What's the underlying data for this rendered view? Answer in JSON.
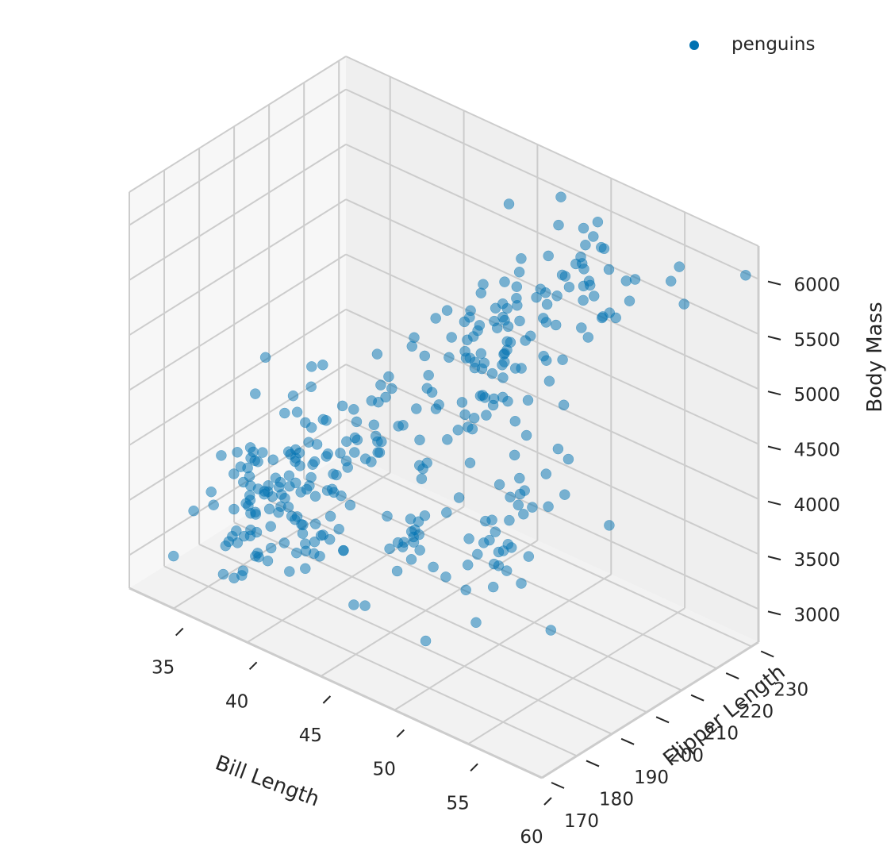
{
  "chart_data": {
    "type": "scatter",
    "projection": "3d",
    "title": "",
    "xlabel": "Bill Length",
    "ylabel": "Flipper Length",
    "zlabel": "Body Mass",
    "xlim": [
      32,
      60
    ],
    "ylim": [
      170,
      232
    ],
    "zlim": [
      2700,
      6300
    ],
    "xticks": [
      35,
      40,
      45,
      50,
      55,
      60
    ],
    "yticks": [
      170,
      180,
      190,
      200,
      210,
      220,
      230
    ],
    "zticks": [
      3000,
      3500,
      4000,
      4500,
      5000,
      5500,
      6000
    ],
    "grid": true,
    "legend": {
      "position": "top-right",
      "entries": [
        "penguins"
      ]
    },
    "colors": {
      "marker": "#0072B2",
      "pane_floor": "#F2F2F2",
      "pane_left": "#F7F7F7",
      "pane_back": "#EFEFEF",
      "grid": "#CCCCCC",
      "text": "#262626"
    },
    "series": [
      {
        "name": "penguins",
        "x": [
          39.1,
          39.5,
          40.3,
          36.7,
          39.3,
          38.9,
          39.2,
          34.1,
          42.0,
          37.8,
          37.8,
          41.1,
          38.6,
          34.6,
          36.6,
          38.7,
          42.5,
          34.4,
          46.0,
          37.8,
          37.7,
          35.9,
          38.2,
          38.8,
          35.3,
          40.6,
          40.5,
          37.9,
          40.5,
          39.5,
          37.2,
          39.5,
          40.9,
          36.4,
          39.2,
          38.8,
          42.2,
          37.6,
          39.8,
          36.5,
          40.8,
          36.0,
          44.1,
          37.0,
          39.6,
          41.1,
          37.5,
          36.0,
          42.3,
          39.6,
          40.1,
          35.0,
          42.0,
          34.5,
          41.4,
          39.0,
          40.6,
          36.5,
          37.6,
          35.7,
          41.3,
          37.6,
          41.1,
          36.4,
          41.6,
          35.5,
          41.1,
          35.9,
          41.8,
          33.5,
          39.7,
          39.6,
          45.8,
          35.5,
          42.8,
          40.9,
          37.2,
          36.2,
          42.1,
          34.6,
          42.9,
          36.7,
          35.1,
          37.3,
          41.3,
          36.3,
          36.9,
          38.3,
          38.9,
          35.7,
          41.1,
          34.0,
          39.6,
          36.2,
          40.8,
          38.1,
          40.3,
          33.1,
          43.2,
          35.0,
          41.0,
          37.7,
          37.8,
          37.9,
          39.7,
          38.6,
          38.2,
          38.1,
          43.2,
          38.1,
          45.6,
          39.7,
          42.2,
          39.6,
          42.7,
          38.6,
          37.3,
          35.7,
          41.1,
          36.2,
          37.7,
          40.2,
          41.4,
          35.2,
          40.6,
          38.8,
          41.5,
          39.0,
          44.1,
          38.5,
          43.1,
          36.8,
          37.5,
          38.1,
          41.1,
          35.6,
          40.2,
          37.0,
          39.7,
          40.2,
          40.6,
          32.1,
          40.7,
          37.3,
          39.0,
          39.2,
          36.6,
          36.0,
          37.8,
          36.0,
          41.5,
          46.1,
          50.0,
          48.7,
          50.0,
          47.6,
          46.5,
          45.4,
          46.7,
          43.3,
          46.8,
          40.9,
          49.0,
          45.5,
          48.4,
          45.8,
          49.3,
          42.0,
          49.2,
          46.2,
          48.7,
          50.2,
          45.1,
          46.5,
          46.3,
          42.9,
          46.1,
          44.5,
          47.8,
          48.2,
          50.0,
          47.3,
          42.8,
          45.1,
          59.6,
          49.1,
          48.4,
          42.6,
          44.4,
          44.0,
          48.7,
          42.7,
          49.6,
          45.3,
          49.6,
          50.5,
          43.6,
          45.5,
          50.5,
          44.9,
          45.2,
          46.6,
          48.5,
          45.1,
          50.1,
          46.5,
          45.0,
          43.8,
          45.5,
          43.2,
          50.4,
          45.3,
          46.2,
          45.7,
          54.3,
          45.8,
          49.8,
          46.2,
          49.5,
          43.5,
          50.7,
          47.7,
          46.4,
          48.2,
          46.5,
          46.4,
          48.6,
          47.5,
          51.1,
          45.2,
          45.2,
          49.1,
          52.5,
          47.4,
          50.0,
          44.9,
          50.8,
          43.4,
          51.3,
          47.5,
          52.1,
          47.5,
          52.2,
          45.5,
          49.5,
          44.5,
          50.8,
          49.4,
          46.9,
          48.4,
          51.1,
          48.5,
          55.9,
          47.2,
          49.1,
          47.3,
          46.8,
          41.7,
          53.4,
          43.3,
          48.1,
          50.5,
          49.8,
          43.5,
          51.5,
          46.2,
          55.1,
          44.5,
          48.8,
          47.2,
          46.8,
          50.4,
          45.2,
          49.9,
          46.5,
          50.0,
          51.3,
          45.4,
          52.7,
          45.2,
          46.1,
          51.3,
          46.0,
          51.3,
          46.6,
          51.7,
          47.0,
          52.0,
          45.9,
          50.5,
          50.3,
          58.0,
          46.4,
          49.2,
          42.4,
          48.5,
          43.2,
          50.6,
          46.7,
          52.0,
          50.5,
          49.5,
          46.4,
          52.8,
          40.9,
          54.2,
          42.5,
          51.0,
          49.7,
          47.5,
          47.6,
          52.0,
          46.9,
          53.5,
          49.0,
          46.2,
          50.9,
          45.5,
          50.9,
          50.8,
          50.1,
          49.0,
          51.5,
          49.8,
          48.1,
          51.4,
          45.7,
          50.7,
          42.5,
          52.2,
          45.2,
          49.3,
          50.2,
          45.6,
          51.9,
          46.8,
          45.7,
          55.8,
          43.5,
          49.6,
          50.8,
          50.2
        ],
        "y": [
          181,
          186,
          195,
          193,
          190,
          181,
          195,
          193,
          190,
          186,
          180,
          182,
          191,
          198,
          185,
          195,
          197,
          184,
          194,
          174,
          180,
          189,
          185,
          180,
          187,
          183,
          187,
          172,
          180,
          178,
          178,
          188,
          184,
          195,
          196,
          190,
          180,
          181,
          184,
          182,
          195,
          186,
          196,
          185,
          190,
          182,
          179,
          190,
          191,
          186,
          188,
          190,
          200,
          187,
          191,
          186,
          193,
          181,
          194,
          185,
          195,
          185,
          192,
          184,
          192,
          195,
          188,
          190,
          198,
          190,
          190,
          196,
          197,
          190,
          195,
          191,
          184,
          187,
          195,
          189,
          196,
          187,
          193,
          191,
          194,
          190,
          189,
          189,
          190,
          202,
          205,
          185,
          186,
          187,
          208,
          190,
          196,
          178,
          192,
          192,
          203,
          183,
          190,
          193,
          184,
          199,
          190,
          181,
          197,
          198,
          191,
          193,
          197,
          191,
          196,
          188,
          199,
          189,
          189,
          187,
          198,
          176,
          202,
          186,
          199,
          191,
          195,
          191,
          210,
          190,
          197,
          193,
          199,
          187,
          190,
          191,
          200,
          185,
          193,
          193,
          187,
          188,
          190,
          192,
          185,
          190,
          184,
          195,
          193,
          187,
          201,
          211,
          230,
          210,
          218,
          215,
          210,
          211,
          219,
          209,
          215,
          214,
          216,
          214,
          213,
          210,
          217,
          210,
          221,
          209,
          222,
          218,
          215,
          213,
          215,
          215,
          215,
          216,
          215,
          210,
          220,
          222,
          209,
          207,
          230,
          220,
          220,
          213,
          219,
          208,
          208,
          208,
          225,
          210,
          216,
          222,
          217,
          210,
          225,
          213,
          215,
          210,
          220,
          210,
          225,
          217,
          220,
          208,
          220,
          208,
          224,
          208,
          221,
          214,
          231,
          219,
          230,
          214,
          229,
          220,
          223,
          216,
          221,
          221,
          217,
          216,
          230,
          209,
          220,
          215,
          223,
          212,
          221,
          212,
          224,
          212,
          228,
          218,
          218,
          212,
          230,
          218,
          228,
          212,
          224,
          214,
          226,
          216,
          222,
          203,
          225,
          219,
          228,
          215,
          228,
          216,
          215,
          210,
          219,
          208,
          209,
          216,
          229,
          213,
          230,
          217,
          230,
          217,
          222,
          214,
          215,
          222,
          212,
          213,
          192,
          196,
          193,
          188,
          197,
          198,
          178,
          197,
          195,
          198,
          193,
          194,
          185,
          201,
          190,
          201,
          197,
          181,
          190,
          195,
          181,
          191,
          187,
          193,
          195,
          197,
          200,
          200,
          191,
          205,
          187,
          201,
          187,
          203,
          195,
          199,
          195,
          210,
          192,
          205,
          210,
          187,
          196,
          196,
          196,
          201,
          190,
          212,
          187,
          198,
          199,
          201,
          193,
          203,
          187,
          197,
          191,
          203,
          202,
          194,
          206,
          189,
          195,
          207,
          202,
          193,
          210,
          198
        ],
        "z": [
          3750,
          3800,
          3250,
          3450,
          3650,
          3625,
          4675,
          3475,
          4250,
          3300,
          3700,
          3200,
          3800,
          4400,
          3700,
          3450,
          4500,
          3325,
          4200,
          3400,
          3600,
          3800,
          3950,
          3800,
          3800,
          3550,
          3200,
          3150,
          3950,
          3250,
          3900,
          3300,
          3900,
          3325,
          4150,
          3950,
          3550,
          3300,
          4650,
          3150,
          3900,
          3100,
          4400,
          3000,
          4600,
          3425,
          2975,
          3450,
          4150,
          3500,
          4300,
          3450,
          4050,
          2900,
          3700,
          3550,
          3800,
          2850,
          3750,
          3150,
          4400,
          3600,
          4050,
          2850,
          3950,
          3350,
          4100,
          3050,
          4450,
          3600,
          3900,
          3550,
          4150,
          3700,
          4250,
          3700,
          3900,
          3550,
          4000,
          3200,
          4700,
          3800,
          4200,
          3350,
          3550,
          3800,
          3500,
          3950,
          3600,
          3550,
          4300,
          3400,
          4450,
          3300,
          4300,
          3700,
          4350,
          2900,
          4100,
          3725,
          4725,
          3075,
          4250,
          2925,
          3550,
          3750,
          3900,
          3175,
          4775,
          3825,
          4600,
          3200,
          4275,
          3900,
          4075,
          2900,
          3775,
          3350,
          3325,
          3150,
          3500,
          3450,
          3875,
          3050,
          4000,
          3275,
          4300,
          3050,
          4000,
          3325,
          3500,
          3500,
          4475,
          3425,
          3900,
          3175,
          3975,
          3400,
          4250,
          3400,
          3475,
          3050,
          3725,
          3000,
          3650,
          4250,
          3475,
          3450,
          3750,
          3700,
          4000,
          4500,
          5700,
          4450,
          5700,
          5400,
          4550,
          4800,
          5200,
          4400,
          5150,
          4650,
          5550,
          4650,
          5850,
          4200,
          5850,
          4150,
          6300,
          4800,
          5350,
          5700,
          5000,
          4400,
          5050,
          5000,
          5100,
          4100,
          5650,
          4600,
          5550,
          5250,
          4700,
          5050,
          6050,
          5150,
          5400,
          4950,
          5250,
          4350,
          5350,
          3950,
          5700,
          4300,
          4750,
          5550,
          4900,
          4200,
          5400,
          5100,
          5300,
          4850,
          5300,
          4400,
          5000,
          4900,
          5050,
          4300,
          5000,
          4450,
          5550,
          4200,
          5300,
          4400,
          5650,
          4700,
          5700,
          4650,
          5800,
          4700,
          5550,
          4750,
          5000,
          5100,
          5200,
          4700,
          5800,
          4600,
          6000,
          4750,
          5950,
          4625,
          5450,
          4725,
          5350,
          4750,
          5600,
          4600,
          5300,
          4875,
          5550,
          4950,
          5400,
          4750,
          5650,
          4850,
          5200,
          4925,
          4875,
          4625,
          5250,
          4850,
          5600,
          4975,
          5500,
          4725,
          5500,
          4700,
          5500,
          4575,
          5500,
          5000,
          5950,
          4650,
          5500,
          4375,
          5850,
          4875,
          6000,
          4925,
          4850,
          5750,
          5200,
          5400,
          3500,
          3900,
          3650,
          3525,
          3725,
          3950,
          3250,
          3750,
          4150,
          3700,
          3800,
          3775,
          3700,
          4050,
          3575,
          4050,
          3300,
          3700,
          3450,
          4400,
          3600,
          3400,
          2900,
          3800,
          3300,
          4150,
          3400,
          3800,
          3700,
          4550,
          3200,
          4300,
          3350,
          4100,
          3600,
          3900,
          3850,
          4800,
          2700,
          4500,
          3950,
          3650,
          3550,
          3500,
          3675,
          4450,
          3400,
          4300,
          3250,
          3675,
          3325,
          3950,
          3600,
          4050,
          3350,
          3450,
          3250,
          4050,
          3800,
          3525,
          3950,
          3650,
          3650,
          4000,
          3400,
          3775,
          4100,
          3775
        ]
      }
    ]
  }
}
